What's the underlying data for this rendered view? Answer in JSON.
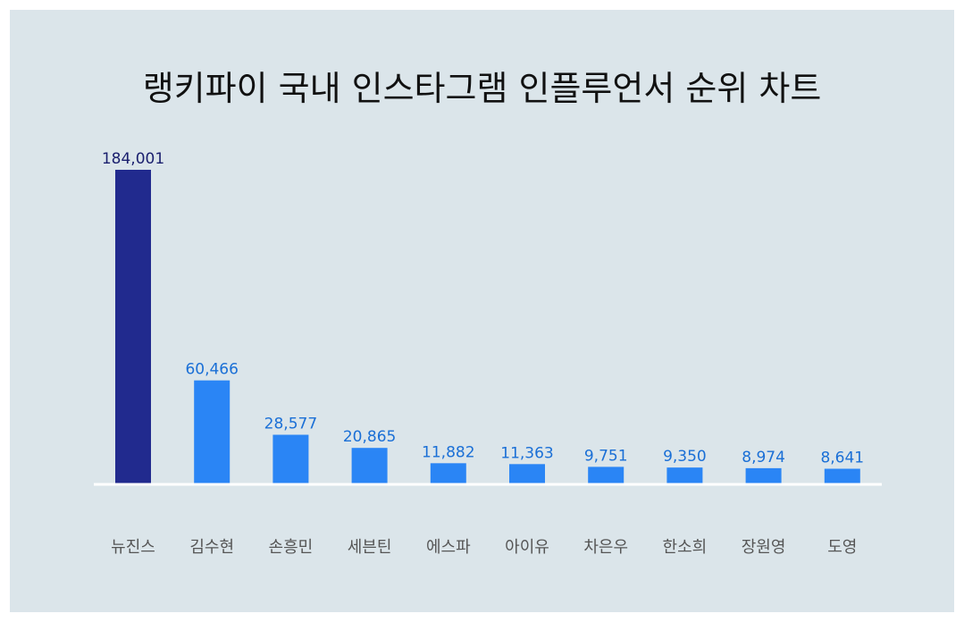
{
  "chart_data": {
    "type": "bar",
    "title": "랭키파이 국내 인스타그램 인플루언서 순위 차트",
    "categories": [
      "뉴진스",
      "김수현",
      "손흥민",
      "세븐틴",
      "에스파",
      "아이유",
      "차은우",
      "한소희",
      "장원영",
      "도영"
    ],
    "values": [
      184001,
      60466,
      28577,
      20865,
      11882,
      11363,
      9751,
      9350,
      8974,
      8641
    ],
    "value_labels": [
      "184,001",
      "60,466",
      "28,577",
      "20,865",
      "11,882",
      "11,363",
      "9,751",
      "9,350",
      "8,974",
      "8,641"
    ],
    "xlabel": "",
    "ylabel": "",
    "ylim": [
      0,
      184001
    ],
    "grid": false,
    "legend": "none",
    "colors": {
      "highlight_bar": "#212a8e",
      "highlight_label": "#1a1f6e",
      "bar": "#2a85f5",
      "label": "#1a6fd6",
      "baseline": "#ffffff",
      "background": "#dbe5ea"
    }
  }
}
